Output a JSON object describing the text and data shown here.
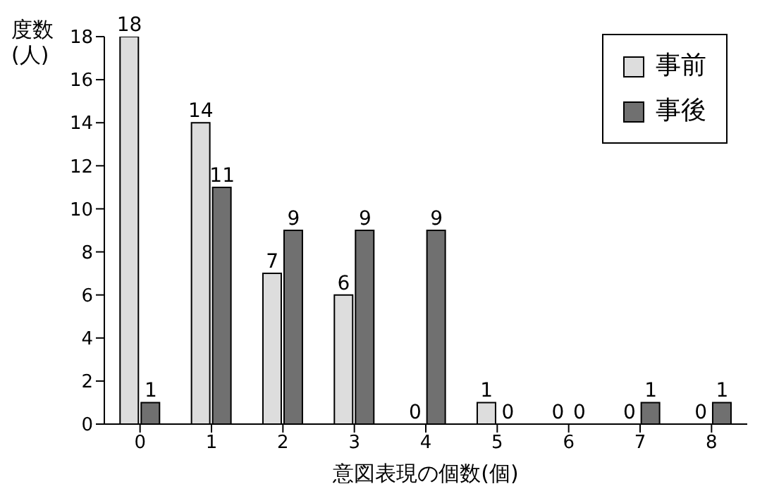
{
  "chart_data": {
    "type": "bar",
    "xlabel": "意図表現の個数(個)",
    "ylabel": "度数(人)",
    "categories": [
      "0",
      "1",
      "2",
      "3",
      "4",
      "5",
      "6",
      "7",
      "8"
    ],
    "series": [
      {
        "name": "事前",
        "color": "#dddddd",
        "values": [
          18,
          14,
          7,
          6,
          0,
          1,
          0,
          0,
          0
        ]
      },
      {
        "name": "事後",
        "color": "#707070",
        "values": [
          1,
          11,
          9,
          9,
          9,
          0,
          0,
          1,
          1
        ]
      }
    ],
    "ylim": [
      0,
      18
    ],
    "yticks": [
      0,
      2,
      4,
      6,
      8,
      10,
      12,
      14,
      16,
      18
    ],
    "grid": false,
    "legend": "top right",
    "data_labels": true
  }
}
